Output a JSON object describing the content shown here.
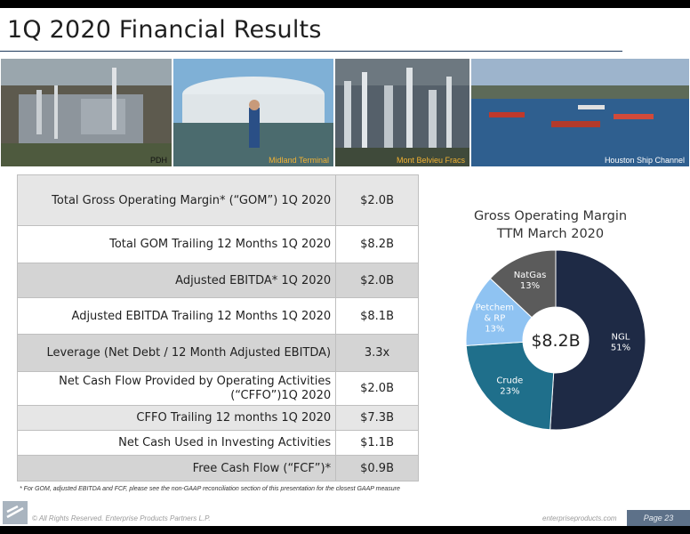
{
  "header": {
    "title": "1Q 2020 Financial Results"
  },
  "photos": [
    {
      "caption": "PDH"
    },
    {
      "caption": "Midland Terminal"
    },
    {
      "caption": "Mont Belvieu Fracs"
    },
    {
      "caption": "Houston Ship Channel"
    }
  ],
  "table": {
    "rows": [
      {
        "label": "Total Gross Operating Margin* (“GOM”) 1Q 2020",
        "value": "$2.0B"
      },
      {
        "label": "Total GOM Trailing 12 Months 1Q 2020",
        "value": "$8.2B"
      },
      {
        "label": "Adjusted EBITDA* 1Q 2020",
        "value": "$2.0B"
      },
      {
        "label": "Adjusted EBITDA Trailing 12 Months 1Q 2020",
        "value": "$8.1B"
      },
      {
        "label": "Leverage (Net Debt / 12 Month Adjusted EBITDA)",
        "value": "3.3x"
      },
      {
        "label": "Net Cash Flow Provided by Operating Activities (“CFFO”)1Q 2020",
        "value": "$2.0B"
      },
      {
        "label": "CFFO Trailing 12 months 1Q 2020",
        "value": "$7.3B"
      },
      {
        "label": "Net Cash Used in Investing Activities",
        "value": "$1.1B"
      },
      {
        "label": "Free Cash Flow (“FCF”)*",
        "value": "$0.9B"
      }
    ]
  },
  "footnote": "* For GOM, adjusted EBITDA and FCF, please see the non-GAAP reconciliation section of this presentation for the closest GAAP measure",
  "chart_data": {
    "type": "pie",
    "title": "Gross Operating Margin TTM March 2020",
    "title_lines": [
      "Gross Operating Margin",
      "TTM March 2020"
    ],
    "center_label": "$8.2B",
    "slices": [
      {
        "label": "NGL",
        "value": 51,
        "value_label": "51%",
        "color": "#1e2a45"
      },
      {
        "label": "Crude",
        "value": 23,
        "value_label": "23%",
        "color": "#1f6f8b"
      },
      {
        "label": "Petchem & RP",
        "label_lines": [
          "Petchem",
          "& RP"
        ],
        "value": 13,
        "value_label": "13%",
        "color": "#8fc3f2"
      },
      {
        "label": "NatGas",
        "value": 13,
        "value_label": "13%",
        "color": "#5b5b5b"
      }
    ]
  },
  "footer": {
    "copyright": "© All Rights Reserved. Enterprise Products Partners L.P.",
    "site": "enterpriseproducts.com",
    "page": "Page 23"
  }
}
